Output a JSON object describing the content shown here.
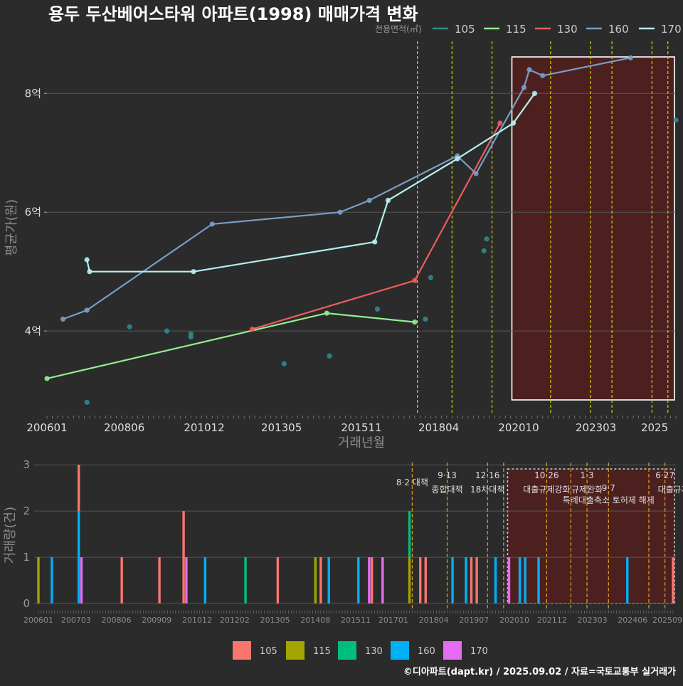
{
  "title": "용두 두산베어스타워 아파트(1998) 매매가격 변화",
  "legend_title": "전용면적(㎡)",
  "footer": "©디아파트(dapt.kr) / 2025.09.02 / 자료=국토교통부 실거래가",
  "colors": {
    "line": {
      "105": "#2e8b8b",
      "115": "#90ee90",
      "130": "#ee5c5c",
      "160": "#7a9cc6",
      "170": "#b4f0f0"
    },
    "bar": {
      "105": "#f8766d",
      "115": "#a3a500",
      "130": "#00bf7d",
      "160": "#00b0f6",
      "170": "#e76bf3"
    }
  },
  "chart_data": [
    {
      "type": "line",
      "title": "용두 두산베어스타워 아파트(1998) 매매가격 변화",
      "xlabel": "거래년월",
      "ylabel": "평균가(원)",
      "x_ticks": [
        "200601",
        "200806",
        "201012",
        "201305",
        "201511",
        "201804",
        "202010",
        "202303",
        "2025"
      ],
      "y_ticks": [
        {
          "v": 4,
          "label": "4억"
        },
        {
          "v": 6,
          "label": "6억"
        },
        {
          "v": 8,
          "label": "8억"
        }
      ],
      "ylim": [
        2.6,
        8.95
      ],
      "xlim": [
        "2006-01",
        "2025-09"
      ],
      "grid": true,
      "legend_placement": "top-right",
      "policy_lines": [
        "2017-08",
        "2018-09",
        "2019-12",
        "2021-10",
        "2023-01",
        "2023-09",
        "2024-12",
        "2025-06"
      ],
      "highlight_range": [
        "2020-08",
        "2025-09"
      ],
      "series": [
        {
          "name": "105",
          "connected": false,
          "points": [
            [
              "2007-04",
              2.8
            ],
            [
              "2008-08",
              4.07
            ],
            [
              "2009-10",
              4.0
            ],
            [
              "2010-07",
              3.95
            ],
            [
              "2010-07",
              3.9
            ],
            [
              "2013-06",
              3.45
            ],
            [
              "2014-11",
              3.58
            ],
            [
              "2016-05",
              4.37
            ],
            [
              "2017-11",
              4.2
            ],
            [
              "2018-01",
              4.9
            ],
            [
              "2019-09",
              5.35
            ],
            [
              "2019-10",
              5.55
            ],
            [
              "2025-09",
              7.55
            ]
          ]
        },
        {
          "name": "115",
          "connected": true,
          "points": [
            [
              "2006-01",
              3.2
            ],
            [
              "2014-10",
              4.3
            ],
            [
              "2017-07",
              4.15
            ]
          ]
        },
        {
          "name": "130",
          "connected": true,
          "points": [
            [
              "2012-06",
              4.03
            ],
            [
              "2017-07",
              4.85
            ],
            [
              "2020-03",
              7.5
            ]
          ]
        },
        {
          "name": "160",
          "connected": true,
          "points": [
            [
              "2006-07",
              4.2
            ],
            [
              "2007-04",
              4.35
            ],
            [
              "2011-03",
              5.8
            ],
            [
              "2015-03",
              6.0
            ],
            [
              "2016-02",
              6.2
            ],
            [
              "2018-11",
              6.95
            ],
            [
              "2019-06",
              6.65
            ],
            [
              "2020-12",
              8.1
            ],
            [
              "2021-02",
              8.4
            ],
            [
              "2021-07",
              8.3
            ],
            [
              "2024-04",
              8.6
            ]
          ]
        },
        {
          "name": "170",
          "connected": true,
          "points": [
            [
              "2007-04",
              5.2
            ],
            [
              "2007-05",
              5.0
            ],
            [
              "2010-08",
              5.0
            ],
            [
              "2016-04",
              5.5
            ],
            [
              "2016-09",
              6.2
            ],
            [
              "2018-11",
              6.9
            ],
            [
              "2020-08",
              7.5
            ],
            [
              "2021-04",
              8.0
            ]
          ]
        }
      ]
    },
    {
      "type": "bar",
      "ylabel": "거래량(건)",
      "y_ticks": [
        0,
        1,
        2,
        3
      ],
      "ylim": [
        0,
        3.05
      ],
      "x_ticks": [
        "200601",
        "200703",
        "200806",
        "200909",
        "201012",
        "201202",
        "201305",
        "201408",
        "201511",
        "201701",
        "201804",
        "201907",
        "202010",
        "202112",
        "202303",
        "202406",
        "202509"
      ],
      "xlim": [
        "2006-01",
        "2025-09"
      ],
      "legend": [
        "105",
        "115",
        "130",
        "160",
        "170"
      ],
      "legend_placement": "bottom",
      "highlight_range": [
        "2020-08",
        "2025-09"
      ],
      "policy_lines": [
        "2017-08",
        "2018-09",
        "2019-12",
        "2020-06",
        "2021-10",
        "2022-07",
        "2023-01",
        "2023-09",
        "2024-12",
        "2025-06"
      ],
      "annotations": [
        {
          "x": "2017-08",
          "line1": "",
          "line2": "8·2 대책"
        },
        {
          "x": "2018-09",
          "line1": "9·13",
          "line2": "종합대책"
        },
        {
          "x": "2019-12",
          "line1": "12·16",
          "line2": "18차대책"
        },
        {
          "x": "2021-10",
          "line1": "10·26",
          "line2": "대출규제강화"
        },
        {
          "x": "2023-01",
          "line1": "1·3",
          "line2": "규제완화"
        },
        {
          "x": "2023-09",
          "line1": "",
          "line2": "9·7"
        },
        {
          "x": "2023-09",
          "line1": "",
          "line2": "특례대출축소 토허제 해제"
        },
        {
          "x": "2025-06",
          "line1": "6·27",
          "line2": "대출규제"
        }
      ],
      "bars": [
        {
          "x": "2006-01",
          "segments": [
            [
              "115",
              1
            ]
          ]
        },
        {
          "x": "2006-06",
          "segments": [
            [
              "160",
              1
            ]
          ]
        },
        {
          "x": "2007-04",
          "segments": [
            [
              "160",
              2
            ],
            [
              "105",
              1
            ]
          ]
        },
        {
          "x": "2007-05",
          "segments": [
            [
              "170",
              1
            ]
          ]
        },
        {
          "x": "2008-08",
          "segments": [
            [
              "105",
              1
            ]
          ]
        },
        {
          "x": "2009-10",
          "segments": [
            [
              "105",
              1
            ]
          ]
        },
        {
          "x": "2010-07",
          "segments": [
            [
              "105",
              2
            ]
          ]
        },
        {
          "x": "2010-08",
          "segments": [
            [
              "170",
              1
            ]
          ]
        },
        {
          "x": "2011-03",
          "segments": [
            [
              "160",
              1
            ]
          ]
        },
        {
          "x": "2012-06",
          "segments": [
            [
              "130",
              1
            ]
          ]
        },
        {
          "x": "2013-06",
          "segments": [
            [
              "105",
              1
            ]
          ]
        },
        {
          "x": "2014-08",
          "segments": [
            [
              "115",
              1
            ]
          ]
        },
        {
          "x": "2014-10",
          "segments": [
            [
              "105",
              1
            ]
          ]
        },
        {
          "x": "2015-01",
          "segments": [
            [
              "160",
              1
            ]
          ]
        },
        {
          "x": "2015-12",
          "segments": [
            [
              "160",
              1
            ]
          ]
        },
        {
          "x": "2016-04",
          "segments": [
            [
              "170",
              1
            ]
          ]
        },
        {
          "x": "2016-05",
          "segments": [
            [
              "105",
              1
            ]
          ]
        },
        {
          "x": "2016-09",
          "segments": [
            [
              "170",
              1
            ]
          ]
        },
        {
          "x": "2017-07",
          "segments": [
            [
              "115",
              1
            ],
            [
              "130",
              1
            ]
          ]
        },
        {
          "x": "2017-11",
          "segments": [
            [
              "105",
              1
            ]
          ]
        },
        {
          "x": "2018-01",
          "segments": [
            [
              "105",
              1
            ]
          ]
        },
        {
          "x": "2018-11",
          "segments": [
            [
              "160",
              1
            ]
          ]
        },
        {
          "x": "2019-04",
          "segments": [
            [
              "160",
              1
            ]
          ]
        },
        {
          "x": "2019-06",
          "segments": [
            [
              "105",
              1
            ]
          ]
        },
        {
          "x": "2019-08",
          "segments": [
            [
              "105",
              1
            ]
          ]
        },
        {
          "x": "2020-03",
          "segments": [
            [
              "160",
              1
            ]
          ]
        },
        {
          "x": "2020-08",
          "segments": [
            [
              "170",
              1
            ]
          ]
        },
        {
          "x": "2020-12",
          "segments": [
            [
              "160",
              1
            ]
          ]
        },
        {
          "x": "2021-02",
          "segments": [
            [
              "160",
              1
            ]
          ]
        },
        {
          "x": "2021-07",
          "segments": [
            [
              "160",
              1
            ]
          ]
        },
        {
          "x": "2024-04",
          "segments": [
            [
              "160",
              1
            ]
          ]
        },
        {
          "x": "2025-09",
          "segments": [
            [
              "105",
              1
            ]
          ]
        }
      ]
    }
  ]
}
